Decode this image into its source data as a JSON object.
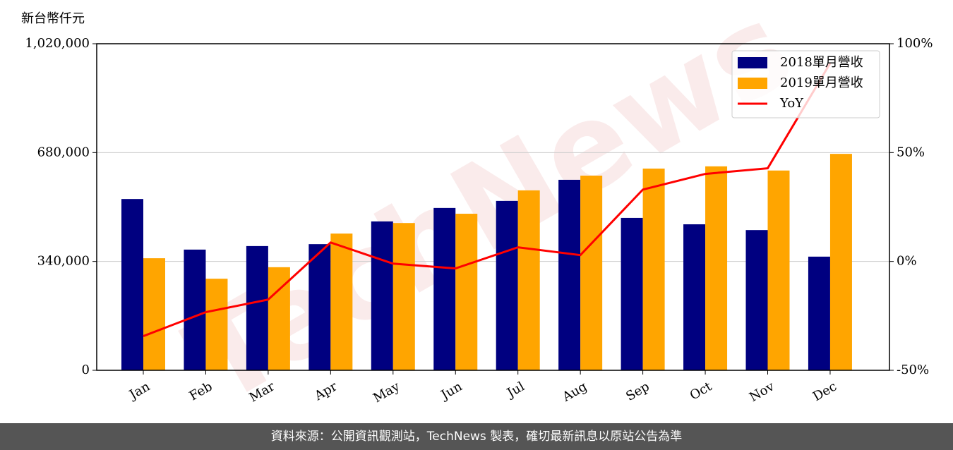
{
  "chart_data": {
    "type": "bar",
    "y_label": "新台幣仟元",
    "watermark": "TechNews",
    "categories": [
      "Jan",
      "Feb",
      "Mar",
      "Apr",
      "May",
      "Jun",
      "Jul",
      "Aug",
      "Sep",
      "Oct",
      "Nov",
      "Dec"
    ],
    "series": [
      {
        "name": "2018單月營收",
        "color": "#000080",
        "values": [
          535000,
          377000,
          388000,
          394000,
          465000,
          507000,
          529000,
          595000,
          476000,
          456000,
          438000,
          355000
        ]
      },
      {
        "name": "2019單月營收",
        "color": "#ffa500",
        "values": [
          350000,
          286000,
          322000,
          427000,
          460000,
          489000,
          562000,
          608000,
          630000,
          637000,
          624000,
          676000
        ]
      },
      {
        "name": "YoY",
        "color": "#ff0000",
        "type": "line",
        "axis": "y2",
        "values": [
          -34.3,
          -23.3,
          -17.5,
          8.7,
          -1.0,
          -3.2,
          6.5,
          2.9,
          33.0,
          40.2,
          42.8,
          91.0
        ]
      }
    ],
    "ylim": [
      0,
      1020000
    ],
    "yticks": [
      0,
      {
        "value": 340000,
        "label": "340,000"
      },
      {
        "value": 680000,
        "label": "680,000"
      },
      {
        "value": 1020000,
        "label": "1,020,000"
      }
    ],
    "y2lim": [
      -50,
      100
    ],
    "y2ticks": [
      {
        "value": -50,
        "label": "-50%"
      },
      {
        "value": 0,
        "label": "0%"
      },
      {
        "value": 50,
        "label": "50%"
      },
      {
        "value": 100,
        "label": "100%"
      }
    ],
    "grid": true,
    "legend": "upper right",
    "footer": "資料來源：公開資訊觀測站，TechNews 製表，確切最新訊息以原站公告為準"
  }
}
